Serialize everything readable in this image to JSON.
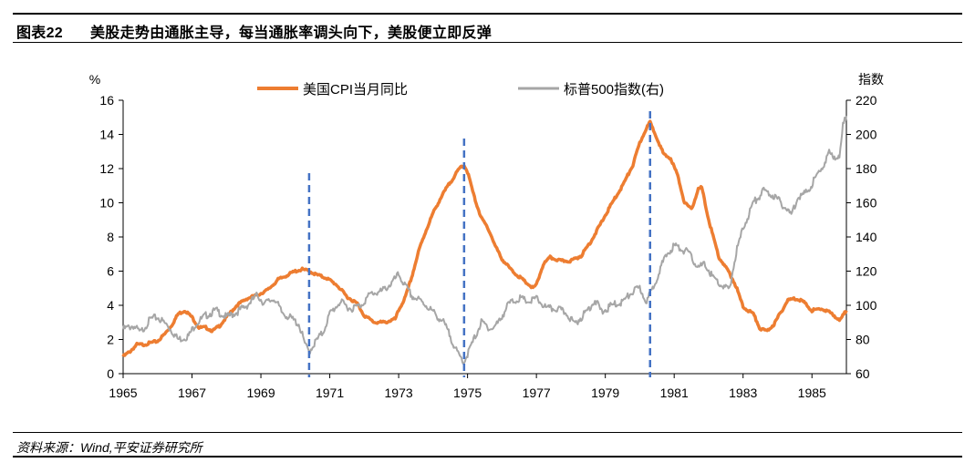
{
  "figure": {
    "number": "图表22",
    "title": "美股走势由通胀主导，每当通胀率调头向下，美股便立即反弹",
    "source": "资料来源：Wind,平安证券研究所"
  },
  "chart_data": {
    "type": "line",
    "dual_axis": true,
    "left_axis": {
      "unit": "%",
      "range": [
        0,
        16
      ],
      "ticks": [
        "0",
        "2",
        "4",
        "6",
        "8",
        "10",
        "12",
        "14",
        "16"
      ]
    },
    "right_axis": {
      "unit": "指数",
      "range": [
        60,
        220
      ],
      "ticks": [
        "60",
        "80",
        "100",
        "120",
        "140",
        "160",
        "180",
        "200",
        "220"
      ]
    },
    "x_axis": {
      "range": [
        1965,
        1986
      ],
      "ticks": [
        "1965",
        "1967",
        "1969",
        "1971",
        "1973",
        "1975",
        "1977",
        "1979",
        "1981",
        "1983",
        "1985"
      ]
    },
    "legend_position": "top-center",
    "series": [
      {
        "name": "美国CPI当月同比",
        "axis": "left",
        "color": "#ED7D31",
        "points": [
          [
            1965.0,
            1.0
          ],
          [
            1965.2,
            1.3
          ],
          [
            1965.4,
            1.7
          ],
          [
            1965.6,
            1.7
          ],
          [
            1965.8,
            1.8
          ],
          [
            1966.0,
            1.9
          ],
          [
            1966.2,
            2.3
          ],
          [
            1966.4,
            2.8
          ],
          [
            1966.6,
            3.5
          ],
          [
            1966.8,
            3.7
          ],
          [
            1967.0,
            3.3
          ],
          [
            1967.2,
            2.7
          ],
          [
            1967.4,
            2.7
          ],
          [
            1967.6,
            2.5
          ],
          [
            1967.8,
            2.8
          ],
          [
            1968.0,
            3.3
          ],
          [
            1968.3,
            4.0
          ],
          [
            1968.6,
            4.4
          ],
          [
            1968.9,
            4.6
          ],
          [
            1969.2,
            4.9
          ],
          [
            1969.5,
            5.5
          ],
          [
            1969.8,
            5.8
          ],
          [
            1970.0,
            6.0
          ],
          [
            1970.2,
            6.1
          ],
          [
            1970.4,
            6.0
          ],
          [
            1970.6,
            5.8
          ],
          [
            1970.9,
            5.6
          ],
          [
            1971.2,
            5.2
          ],
          [
            1971.5,
            4.5
          ],
          [
            1971.8,
            4.1
          ],
          [
            1972.0,
            3.4
          ],
          [
            1972.3,
            3.0
          ],
          [
            1972.6,
            3.0
          ],
          [
            1972.9,
            3.2
          ],
          [
            1973.0,
            3.7
          ],
          [
            1973.2,
            4.5
          ],
          [
            1973.4,
            5.8
          ],
          [
            1973.6,
            7.3
          ],
          [
            1973.8,
            8.4
          ],
          [
            1974.0,
            9.4
          ],
          [
            1974.2,
            10.2
          ],
          [
            1974.4,
            10.9
          ],
          [
            1974.6,
            11.5
          ],
          [
            1974.8,
            12.1
          ],
          [
            1974.9,
            12.2
          ],
          [
            1975.0,
            11.8
          ],
          [
            1975.2,
            10.3
          ],
          [
            1975.4,
            9.1
          ],
          [
            1975.6,
            8.5
          ],
          [
            1975.8,
            7.5
          ],
          [
            1976.0,
            6.7
          ],
          [
            1976.3,
            6.0
          ],
          [
            1976.6,
            5.5
          ],
          [
            1976.9,
            5.0
          ],
          [
            1977.0,
            5.2
          ],
          [
            1977.2,
            6.4
          ],
          [
            1977.4,
            6.8
          ],
          [
            1977.7,
            6.6
          ],
          [
            1978.0,
            6.6
          ],
          [
            1978.3,
            6.9
          ],
          [
            1978.6,
            7.8
          ],
          [
            1978.9,
            8.9
          ],
          [
            1979.2,
            10.0
          ],
          [
            1979.5,
            11.0
          ],
          [
            1979.8,
            12.2
          ],
          [
            1980.0,
            13.5
          ],
          [
            1980.2,
            14.4
          ],
          [
            1980.3,
            14.7
          ],
          [
            1980.5,
            13.8
          ],
          [
            1980.7,
            12.8
          ],
          [
            1980.9,
            12.6
          ],
          [
            1981.1,
            11.6
          ],
          [
            1981.3,
            10.0
          ],
          [
            1981.5,
            9.6
          ],
          [
            1981.7,
            10.8
          ],
          [
            1981.8,
            10.9
          ],
          [
            1982.0,
            9.0
          ],
          [
            1982.3,
            6.8
          ],
          [
            1982.6,
            5.9
          ],
          [
            1982.8,
            5.1
          ],
          [
            1983.0,
            3.9
          ],
          [
            1983.3,
            3.5
          ],
          [
            1983.5,
            2.6
          ],
          [
            1983.7,
            2.5
          ],
          [
            1983.9,
            2.9
          ],
          [
            1984.1,
            3.6
          ],
          [
            1984.3,
            4.3
          ],
          [
            1984.5,
            4.4
          ],
          [
            1984.7,
            4.3
          ],
          [
            1985.0,
            3.7
          ],
          [
            1985.3,
            3.8
          ],
          [
            1985.6,
            3.5
          ],
          [
            1985.8,
            3.1
          ],
          [
            1986.0,
            3.7
          ]
        ]
      },
      {
        "name": "标普500指数(右)",
        "axis": "right",
        "color": "#A6A6A6",
        "points": [
          [
            1965.0,
            86
          ],
          [
            1965.3,
            88
          ],
          [
            1965.5,
            84
          ],
          [
            1965.8,
            92
          ],
          [
            1966.0,
            93
          ],
          [
            1966.3,
            88
          ],
          [
            1966.6,
            80
          ],
          [
            1966.9,
            82
          ],
          [
            1967.1,
            89
          ],
          [
            1967.4,
            94
          ],
          [
            1967.7,
            97
          ],
          [
            1968.0,
            93
          ],
          [
            1968.3,
            96
          ],
          [
            1968.6,
            100
          ],
          [
            1968.9,
            106
          ],
          [
            1969.1,
            101
          ],
          [
            1969.4,
            104
          ],
          [
            1969.6,
            96
          ],
          [
            1969.9,
            92
          ],
          [
            1970.1,
            89
          ],
          [
            1970.3,
            76
          ],
          [
            1970.4,
            73
          ],
          [
            1970.6,
            79
          ],
          [
            1970.8,
            84
          ],
          [
            1971.0,
            95
          ],
          [
            1971.3,
            102
          ],
          [
            1971.6,
            98
          ],
          [
            1971.9,
            100
          ],
          [
            1972.2,
            107
          ],
          [
            1972.5,
            108
          ],
          [
            1972.8,
            113
          ],
          [
            1973.0,
            118
          ],
          [
            1973.2,
            111
          ],
          [
            1973.4,
            105
          ],
          [
            1973.6,
            103
          ],
          [
            1973.8,
            100
          ],
          [
            1974.0,
            96
          ],
          [
            1974.3,
            90
          ],
          [
            1974.5,
            82
          ],
          [
            1974.7,
            72
          ],
          [
            1974.9,
            67
          ],
          [
            1975.1,
            76
          ],
          [
            1975.4,
            90
          ],
          [
            1975.7,
            86
          ],
          [
            1975.9,
            90
          ],
          [
            1976.2,
            101
          ],
          [
            1976.5,
            104
          ],
          [
            1976.8,
            102
          ],
          [
            1977.0,
            104
          ],
          [
            1977.3,
            98
          ],
          [
            1977.6,
            98
          ],
          [
            1977.9,
            95
          ],
          [
            1978.1,
            89
          ],
          [
            1978.4,
            95
          ],
          [
            1978.7,
            103
          ],
          [
            1978.9,
            96
          ],
          [
            1979.2,
            100
          ],
          [
            1979.5,
            102
          ],
          [
            1979.8,
            108
          ],
          [
            1980.0,
            110
          ],
          [
            1980.2,
            102
          ],
          [
            1980.4,
            111
          ],
          [
            1980.6,
            122
          ],
          [
            1980.8,
            130
          ],
          [
            1981.0,
            135
          ],
          [
            1981.2,
            133
          ],
          [
            1981.4,
            131
          ],
          [
            1981.7,
            122
          ],
          [
            1981.9,
            124
          ],
          [
            1982.1,
            117
          ],
          [
            1982.4,
            111
          ],
          [
            1982.6,
            109
          ],
          [
            1982.8,
            131
          ],
          [
            1983.0,
            145
          ],
          [
            1983.3,
            160
          ],
          [
            1983.6,
            167
          ],
          [
            1983.9,
            164
          ],
          [
            1984.1,
            160
          ],
          [
            1984.4,
            153
          ],
          [
            1984.6,
            164
          ],
          [
            1984.8,
            165
          ],
          [
            1985.0,
            171
          ],
          [
            1985.3,
            181
          ],
          [
            1985.5,
            189
          ],
          [
            1985.8,
            186
          ],
          [
            1985.9,
            205
          ],
          [
            1986.0,
            211
          ]
        ]
      }
    ],
    "markers": [
      {
        "type": "vertical-dashed",
        "x": 1970.4,
        "color": "#4472C4"
      },
      {
        "type": "vertical-dashed",
        "x": 1974.9,
        "color": "#4472C4"
      },
      {
        "type": "vertical-dashed",
        "x": 1980.3,
        "color": "#4472C4"
      }
    ]
  }
}
